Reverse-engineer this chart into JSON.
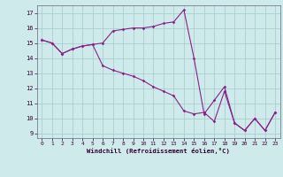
{
  "xlabel": "Windchill (Refroidissement éolien,°C)",
  "background_color": "#ceeaea",
  "grid_color": "#aacece",
  "line_color": "#882288",
  "xlim": [
    -0.5,
    23.5
  ],
  "ylim": [
    8.7,
    17.5
  ],
  "xticks": [
    0,
    1,
    2,
    3,
    4,
    5,
    6,
    7,
    8,
    9,
    10,
    11,
    12,
    13,
    14,
    15,
    16,
    17,
    18,
    19,
    20,
    21,
    22,
    23
  ],
  "yticks": [
    9,
    10,
    11,
    12,
    13,
    14,
    15,
    16,
    17
  ],
  "line1_x": [
    0,
    1,
    2,
    3,
    4,
    5,
    6,
    7,
    8,
    9,
    10,
    11,
    12,
    13,
    14,
    15,
    16,
    17,
    18,
    19,
    20,
    21,
    22,
    23
  ],
  "line1_y": [
    15.2,
    15.0,
    14.3,
    14.6,
    14.8,
    14.9,
    15.0,
    15.8,
    15.9,
    16.0,
    16.0,
    16.1,
    16.3,
    16.4,
    17.2,
    14.0,
    10.3,
    11.2,
    12.1,
    9.7,
    9.2,
    10.0,
    9.2,
    10.4
  ],
  "line2_x": [
    0,
    1,
    2,
    3,
    4,
    5,
    6,
    7,
    8,
    9,
    10,
    11,
    12,
    13,
    14,
    15,
    16,
    17,
    18,
    19,
    20,
    21,
    22,
    23
  ],
  "line2_y": [
    15.2,
    15.0,
    14.3,
    14.6,
    14.8,
    14.9,
    13.5,
    13.2,
    13.0,
    12.8,
    12.5,
    12.1,
    11.8,
    11.5,
    10.5,
    10.3,
    10.4,
    9.8,
    11.8,
    9.7,
    9.2,
    10.0,
    9.2,
    10.4
  ]
}
